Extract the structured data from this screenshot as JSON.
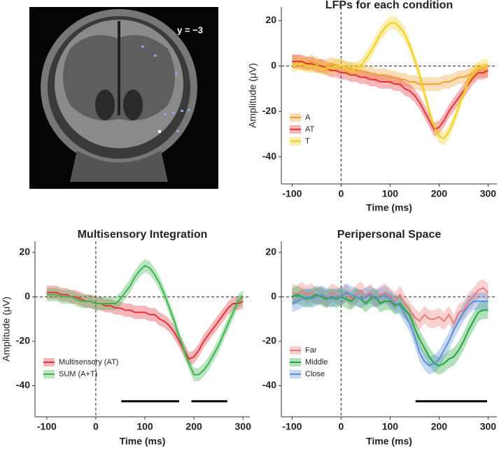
{
  "image": {
    "label": "y = −3"
  },
  "chart_data": [
    {
      "type": "line",
      "title": "LFPs for each condition",
      "xlabel": "Time (ms)",
      "ylabel": "Amplitude (μV)",
      "x": [
        -100,
        -90,
        -80,
        -70,
        -60,
        -50,
        -40,
        -30,
        -20,
        -10,
        0,
        10,
        20,
        30,
        40,
        50,
        60,
        70,
        80,
        90,
        100,
        110,
        120,
        130,
        140,
        150,
        160,
        170,
        180,
        190,
        200,
        210,
        220,
        230,
        240,
        250,
        260,
        270,
        280,
        290,
        300
      ],
      "series": [
        {
          "name": "A",
          "color": "#f0a030",
          "error": 3,
          "values": [
            2,
            2,
            1,
            1,
            2,
            1,
            0,
            0,
            1,
            0,
            0,
            -1,
            -1,
            -2,
            -2,
            -3,
            -3,
            -4,
            -4,
            -4,
            -5,
            -5,
            -6,
            -6,
            -7,
            -7,
            -8,
            -8,
            -8,
            -8,
            -8,
            -7,
            -7,
            -6,
            -5,
            -5,
            -4,
            -3,
            -2,
            -2,
            -2
          ]
        },
        {
          "name": "AT",
          "color": "#e5323a",
          "error": 3,
          "values": [
            2,
            2,
            2,
            1,
            1,
            0,
            0,
            -1,
            -2,
            -2,
            -3,
            -3,
            -4,
            -4,
            -5,
            -5,
            -6,
            -6,
            -7,
            -7,
            -7,
            -8,
            -8,
            -10,
            -11,
            -13,
            -16,
            -20,
            -24,
            -28,
            -27,
            -24,
            -20,
            -17,
            -14,
            -11,
            -8,
            -5,
            -3,
            -3,
            -2
          ]
        },
        {
          "name": "T",
          "color": "#f2cf1e",
          "error": 3,
          "values": [
            0,
            1,
            1,
            0,
            0,
            0,
            -1,
            -1,
            -1,
            0,
            0,
            -1,
            -2,
            -1,
            0,
            3,
            6,
            10,
            14,
            17,
            19,
            19,
            17,
            14,
            9,
            3,
            -4,
            -12,
            -20,
            -27,
            -31,
            -32,
            -29,
            -24,
            -18,
            -12,
            -7,
            -3,
            -1,
            0,
            0
          ]
        }
      ],
      "xlim": [
        -122,
        318
      ],
      "ylim": [
        -52,
        26
      ],
      "xticks": [
        -100,
        0,
        100,
        200,
        300
      ],
      "yticks": [
        20,
        0,
        -20,
        -40
      ],
      "legend": "bottom-left",
      "reference_lines": true
    },
    {
      "type": "line",
      "title": "Multisensory Integration",
      "xlabel": "Time (ms)",
      "ylabel": "Amplitude (μV)",
      "x": [
        -100,
        -90,
        -80,
        -70,
        -60,
        -50,
        -40,
        -30,
        -20,
        -10,
        0,
        10,
        20,
        30,
        40,
        50,
        60,
        70,
        80,
        90,
        100,
        110,
        120,
        130,
        140,
        150,
        160,
        170,
        180,
        190,
        200,
        210,
        220,
        230,
        240,
        250,
        260,
        270,
        280,
        290,
        300
      ],
      "series": [
        {
          "name": "Multisensory (AT)",
          "color": "#e5323a",
          "error": 3,
          "values": [
            2,
            2,
            2,
            1,
            1,
            0,
            0,
            -1,
            -2,
            -2,
            -3,
            -3,
            -4,
            -4,
            -5,
            -5,
            -6,
            -6,
            -7,
            -7,
            -7,
            -8,
            -8,
            -10,
            -11,
            -13,
            -16,
            -20,
            -24,
            -28,
            -27,
            -24,
            -20,
            -17,
            -14,
            -11,
            -8,
            -5,
            -3,
            -3,
            -2
          ]
        },
        {
          "name": "SUM (A+T)",
          "color": "#3cb44b",
          "error": 3,
          "values": [
            1,
            1,
            1,
            0,
            0,
            0,
            -1,
            -2,
            -2,
            -2,
            -3,
            -3,
            -3,
            -3,
            -3,
            -1,
            2,
            5,
            9,
            12,
            14,
            13,
            10,
            6,
            1,
            -5,
            -11,
            -18,
            -24,
            -30,
            -35,
            -35,
            -33,
            -30,
            -26,
            -22,
            -17,
            -12,
            -7,
            -2,
            0
          ]
        }
      ],
      "significance_bars": [
        {
          "x": [
            52,
            170
          ],
          "y": -47
        },
        {
          "x": [
            195,
            268
          ],
          "y": -47
        }
      ],
      "xlim": [
        -124,
        314
      ],
      "ylim": [
        -54,
        25
      ],
      "xticks": [
        -100,
        0,
        100,
        200,
        300
      ],
      "yticks": [
        20,
        0,
        -20,
        -40
      ],
      "legend": "bottom-left",
      "reference_lines": true
    },
    {
      "type": "line",
      "title": "Peripersonal Space",
      "xlabel": "Time (ms)",
      "x": [
        -100,
        -90,
        -80,
        -70,
        -60,
        -50,
        -40,
        -30,
        -20,
        -10,
        0,
        10,
        20,
        30,
        40,
        50,
        60,
        70,
        80,
        90,
        100,
        110,
        120,
        130,
        140,
        150,
        160,
        170,
        180,
        190,
        200,
        210,
        220,
        230,
        240,
        250,
        260,
        270,
        280,
        290,
        300
      ],
      "series": [
        {
          "name": "Far",
          "color": "#ee7b7b",
          "error": 4,
          "values": [
            2,
            1,
            3,
            1,
            2,
            0,
            1,
            -1,
            2,
            1,
            0,
            2,
            -1,
            1,
            3,
            0,
            2,
            -1,
            1,
            2,
            0,
            -2,
            1,
            -3,
            -6,
            -9,
            -11,
            -8,
            -10,
            -10,
            -9,
            -11,
            -8,
            -12,
            -7,
            -6,
            -2,
            0,
            3,
            4,
            2
          ]
        },
        {
          "name": "Middle",
          "color": "#22a638",
          "error": 4,
          "values": [
            0,
            1,
            0,
            -1,
            0,
            1,
            0,
            -1,
            0,
            -1,
            0,
            -1,
            -2,
            0,
            -1,
            -3,
            -1,
            0,
            -3,
            -2,
            -2,
            -4,
            -3,
            -6,
            -8,
            -14,
            -19,
            -23,
            -27,
            -30,
            -31,
            -30,
            -28,
            -27,
            -24,
            -20,
            -15,
            -11,
            -7,
            -6,
            -6
          ]
        },
        {
          "name": "Close",
          "color": "#5b8fd6",
          "error": 4,
          "values": [
            -3,
            -2,
            -1,
            0,
            -1,
            0,
            1,
            0,
            -1,
            0,
            0,
            2,
            1,
            0,
            -1,
            0,
            1,
            -1,
            0,
            1,
            -1,
            -3,
            -4,
            -8,
            -12,
            -18,
            -25,
            -29,
            -31,
            -30,
            -28,
            -24,
            -20,
            -15,
            -11,
            -7,
            -4,
            -2,
            -2,
            -2,
            -2
          ]
        }
      ],
      "significance_bars": [
        {
          "x": [
            152,
            298
          ],
          "y": -47
        }
      ],
      "xlim": [
        -122,
        318
      ],
      "ylim": [
        -54,
        25
      ],
      "xticks": [
        -100,
        0,
        100,
        200,
        300
      ],
      "yticks": [
        20,
        0,
        -20,
        -40
      ],
      "legend": "bottom-left",
      "reference_lines": true
    }
  ]
}
